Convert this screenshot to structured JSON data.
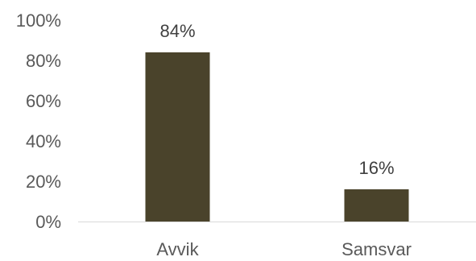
{
  "chart_data": {
    "type": "bar",
    "categories": [
      "Avvik",
      "Samsvar"
    ],
    "values": [
      84,
      16
    ],
    "data_labels": [
      "84%",
      "16%"
    ],
    "y_ticks": [
      0,
      20,
      40,
      60,
      80,
      100
    ],
    "y_tick_labels": [
      "0%",
      "20%",
      "40%",
      "60%",
      "80%",
      "100%"
    ],
    "ylim": [
      0,
      100
    ],
    "grid": false,
    "bar_color": "#4a432b",
    "axis_color": "#d9d9d9"
  }
}
